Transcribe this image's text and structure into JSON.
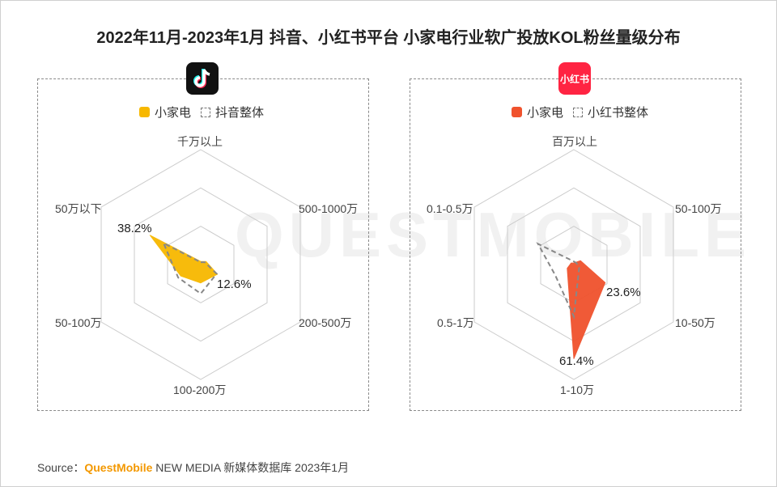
{
  "title": "2022年11月-2023年1月 抖音、小红书平台 小家电行业软广投放KOL粉丝量级分布",
  "watermark": "QUESTMOBILE",
  "source": {
    "prefix": "Source：",
    "brand": "QuestMobile",
    "rest": "NEW MEDIA 新媒体数据库 2023年1月"
  },
  "colors": {
    "douyin_fill": "#f7b800",
    "xhs_fill": "#f0522d",
    "grid": "#cccccc",
    "overall_line": "#888888"
  },
  "icons": {
    "douyin": "douyin-logo-icon",
    "xhs": "xiaohongshu-logo-icon"
  },
  "chart_data": [
    {
      "type": "radar",
      "platform_logo": "douyin-logo-icon",
      "axes": [
        "千万以上",
        "500-1000万",
        "200-500万",
        "100-200万",
        "50-100万",
        "50万以下"
      ],
      "legend": [
        "小家电",
        "抖音整体"
      ],
      "series": [
        {
          "name": "小家电",
          "values": [
            2.0,
            4.0,
            12.6,
            12.0,
            15.0,
            38.2
          ]
        },
        {
          "name": "抖音整体",
          "values": [
            1.5,
            3.0,
            12.0,
            19.0,
            17.0,
            28.0
          ]
        }
      ],
      "data_labels": [
        "38.2%",
        "12.6%"
      ],
      "rmax": 75
    },
    {
      "type": "radar",
      "platform_logo": "xiaohongshu-logo-icon",
      "logo_text": "小红书",
      "axes": [
        "百万以上",
        "50-100万",
        "10-50万",
        "1-10万",
        "0.5-1万",
        "0.1-0.5万"
      ],
      "legend": [
        "小家电",
        "小红书整体"
      ],
      "series": [
        {
          "name": "小家电",
          "values": [
            1.0,
            5.0,
            23.6,
            61.4,
            5.0,
            2.0
          ]
        },
        {
          "name": "小红书整体",
          "values": [
            2.0,
            2.0,
            4.0,
            34.0,
            14.0,
            27.0
          ]
        }
      ],
      "data_labels": [
        "23.6%",
        "61.4%"
      ],
      "rmax": 75
    }
  ]
}
